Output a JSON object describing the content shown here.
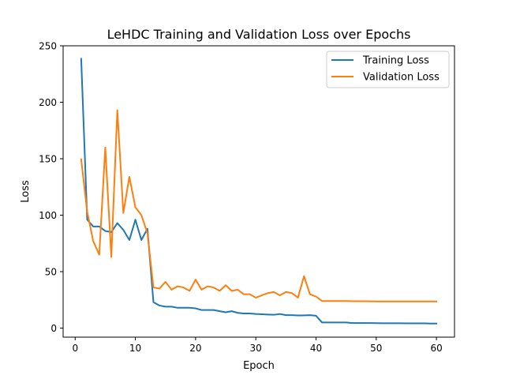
{
  "chart_data": {
    "type": "line",
    "title": "LeHDC Training and Validation Loss over Epochs",
    "xlabel": "Epoch",
    "ylabel": "Loss",
    "xlim": [
      -2.0,
      63.0
    ],
    "ylim": [
      -8.0,
      250.0
    ],
    "xticks": [
      0,
      10,
      20,
      30,
      40,
      50,
      60
    ],
    "yticks": [
      0,
      50,
      100,
      150,
      200,
      250
    ],
    "grid": false,
    "legend_position": "upper right",
    "x": [
      1,
      2,
      3,
      4,
      5,
      6,
      7,
      8,
      9,
      10,
      11,
      12,
      13,
      14,
      15,
      16,
      17,
      18,
      19,
      20,
      21,
      22,
      23,
      24,
      25,
      26,
      27,
      28,
      29,
      30,
      31,
      32,
      33,
      34,
      35,
      36,
      37,
      38,
      39,
      40,
      41,
      42,
      43,
      44,
      45,
      46,
      47,
      48,
      49,
      50,
      51,
      52,
      53,
      54,
      55,
      56,
      57,
      58,
      59,
      60
    ],
    "series": [
      {
        "name": "Training Loss",
        "color": "#1f77b4",
        "values": [
          238.5,
          96,
          90,
          90,
          86,
          85,
          93,
          87,
          78,
          96,
          78,
          88,
          23,
          20,
          19,
          19,
          18,
          18,
          18,
          17.5,
          16,
          16,
          16,
          15,
          14,
          15,
          13.5,
          13,
          13,
          12.5,
          12.3,
          12,
          11.8,
          12.5,
          11.5,
          11.5,
          11.2,
          11.3,
          11.5,
          11,
          5,
          5,
          5,
          5,
          5,
          4.5,
          4.5,
          4.5,
          4.5,
          4.4,
          4.3,
          4.3,
          4.3,
          4.3,
          4.2,
          4.2,
          4.2,
          4.2,
          4.1,
          4.1
        ]
      },
      {
        "name": "Validation Loss",
        "color": "#ff7f0e",
        "values": [
          149.5,
          103,
          77,
          65,
          160,
          63,
          193,
          102,
          134,
          107,
          100,
          84,
          36,
          35,
          41,
          34,
          37,
          36,
          33,
          43,
          34,
          37,
          36,
          33,
          38,
          33,
          34,
          30,
          30,
          27,
          29,
          31,
          32,
          29,
          32,
          31,
          27,
          46,
          30,
          28,
          24,
          24,
          24,
          24,
          24,
          23.8,
          23.8,
          23.8,
          23.7,
          23.6,
          23.6,
          23.6,
          23.6,
          23.6,
          23.6,
          23.6,
          23.6,
          23.6,
          23.6,
          23.6
        ]
      }
    ]
  }
}
